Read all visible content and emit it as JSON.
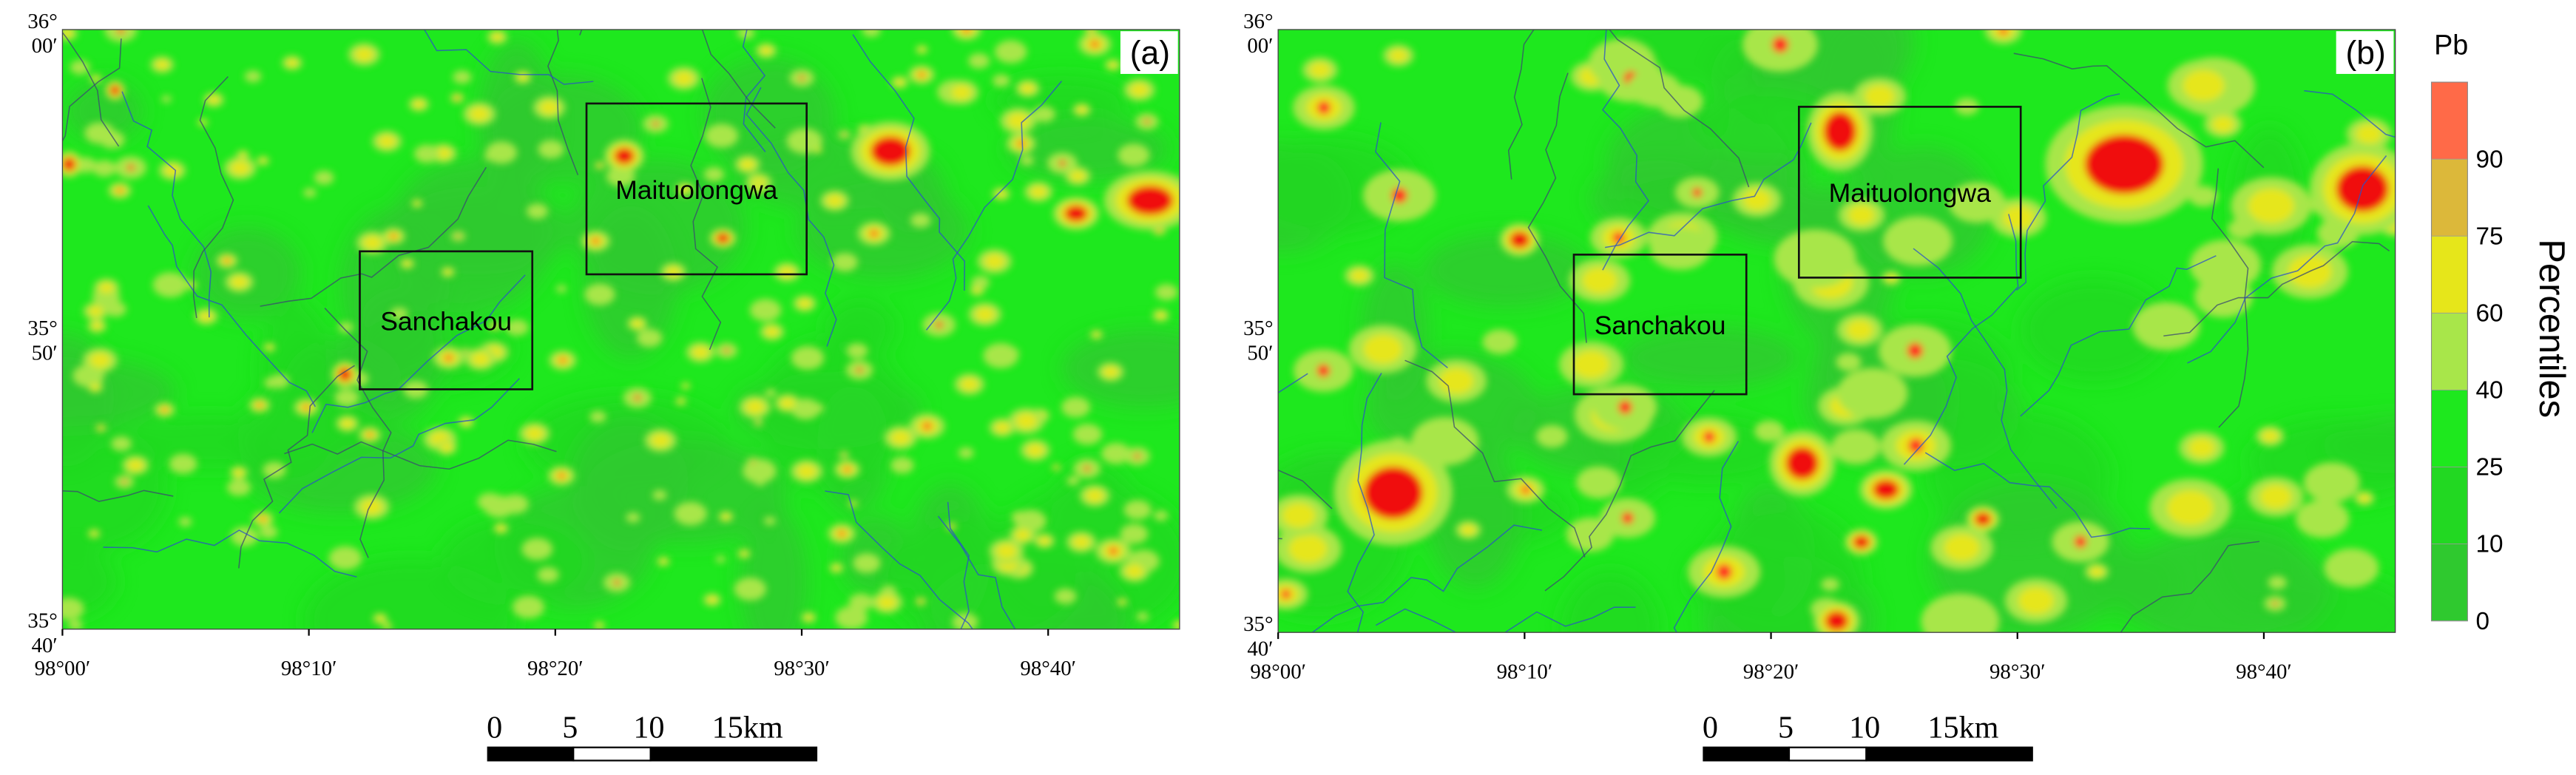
{
  "panels": [
    {
      "label": "(a)",
      "places": [
        "Maituolongwa",
        "Sanchakou"
      ]
    },
    {
      "label": "(b)",
      "places": [
        "Maituolongwa",
        "Sanchakou"
      ]
    }
  ],
  "lon_labels": [
    "98°00′",
    "98°10′",
    "98°20′",
    "98°30′",
    "98°40′"
  ],
  "lat_labels": [
    {
      "deg": "36°",
      "min": "00′"
    },
    {
      "deg": "35°",
      "min": "50′"
    },
    {
      "deg": "35°",
      "min": "40′"
    }
  ],
  "legend": {
    "title": "Pb",
    "axis_label": "Percentiles",
    "ticks": [
      0,
      10,
      25,
      40,
      60,
      75,
      90
    ],
    "colors": [
      "#2fc92f",
      "#22d822",
      "#1ee81e",
      "#a8e64a",
      "#e6e61a",
      "#dcb83a",
      "#ff6a48"
    ]
  },
  "scale_bar": {
    "labels": [
      "0",
      "5",
      "10",
      "15km"
    ]
  }
}
